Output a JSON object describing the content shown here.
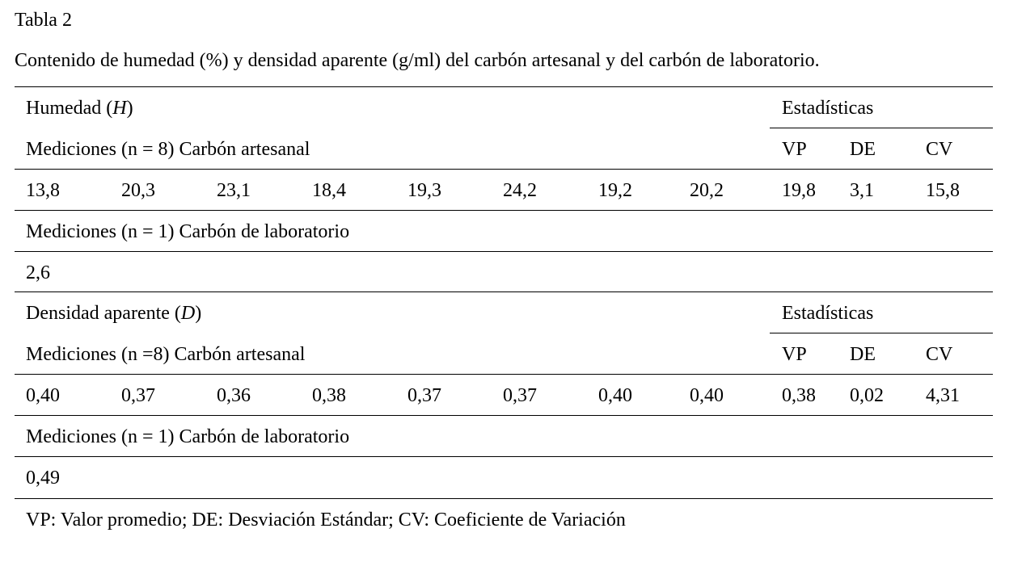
{
  "title": "Tabla 2",
  "caption": "Contenido de humedad (%) y densidad aparente (g/ml) del carbón artesanal y del carbón de laboratorio.",
  "sections": [
    {
      "heading": [
        "Humedad (",
        "H",
        ")"
      ],
      "stats_label": "Estadísticas",
      "artisanal_label": "Mediciones (n = 8) Carbón artesanal",
      "stat_headers": [
        "VP",
        "DE",
        "CV"
      ],
      "measurements": [
        "13,8",
        "20,3",
        "23,1",
        "18,4",
        "19,3",
        "24,2",
        "19,2",
        "20,2"
      ],
      "stats": [
        "19,8",
        "3,1",
        "15,8"
      ],
      "lab_label": "Mediciones (n = 1) Carbón de laboratorio",
      "lab_value": "2,6"
    },
    {
      "heading": [
        "Densidad aparente (",
        "D",
        ")"
      ],
      "stats_label": "Estadísticas",
      "artisanal_label": "Mediciones (n =8) Carbón artesanal",
      "stat_headers": [
        "VP",
        "DE",
        "CV"
      ],
      "measurements": [
        "0,40",
        "0,37",
        "0,36",
        "0,38",
        "0,37",
        "0,37",
        "0,40",
        "0,40"
      ],
      "stats": [
        "0,38",
        "0,02",
        "4,31"
      ],
      "lab_label": "Mediciones (n = 1) Carbón de laboratorio",
      "lab_value": "0,49"
    }
  ],
  "footnote": "VP: Valor promedio; DE: Desviación Estándar; CV: Coeficiente de Variación"
}
